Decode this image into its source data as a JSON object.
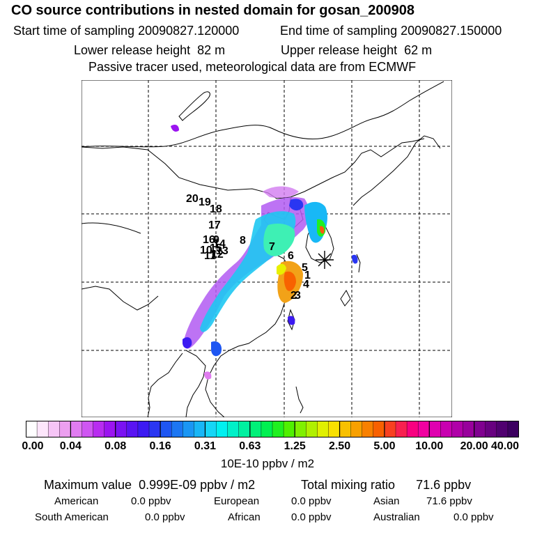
{
  "header": {
    "title": "CO  source contributions in nested domain for gosan_200908",
    "start_label": "Start time of sampling",
    "start_value": "20090827.120000",
    "end_label": "End time of sampling",
    "end_value": "20090827.150000",
    "lower_label": "Lower release height",
    "lower_value": "82 m",
    "upper_label": "Upper release height",
    "upper_value": "62 m",
    "note": "Passive tracer used, meteorological data are from ECMWF"
  },
  "map": {
    "trajectory_labels": [
      "20",
      "19",
      "18",
      "17",
      "16",
      "10",
      "11",
      "12",
      "13",
      "14",
      "15",
      "9",
      "8",
      "7",
      "6",
      "5",
      "1",
      "4",
      "2",
      "3"
    ],
    "station_marker": "receptor-star"
  },
  "colorbar": {
    "ticks": [
      "0.00",
      "0.04",
      "0.08",
      "0.16",
      "0.31",
      "0.63",
      "1.25",
      "2.50",
      "5.00",
      "10.00",
      "20.00",
      "40.00"
    ],
    "colors": [
      "#ffffff",
      "#fde6fb",
      "#f6c5f6",
      "#ec9ff0",
      "#e07cf0",
      "#cf56f2",
      "#b82cf0",
      "#9b14f0",
      "#7a12f2",
      "#5914f2",
      "#3c1af2",
      "#2a36f2",
      "#1e56f2",
      "#1c76f2",
      "#1a96f4",
      "#18b6f6",
      "#16d6f6",
      "#00f0f0",
      "#00f0c8",
      "#00f0a0",
      "#00f078",
      "#00f050",
      "#20f020",
      "#50f000",
      "#80f000",
      "#b0f000",
      "#e0f000",
      "#f8e000",
      "#f8c000",
      "#f8a000",
      "#f88000",
      "#f86000",
      "#f84020",
      "#f82050",
      "#f80080",
      "#f000a0",
      "#e000b0",
      "#c800b0",
      "#b000a8",
      "#98009c",
      "#800090",
      "#680080",
      "#500070",
      "#3c0060"
    ],
    "unit": "10E-10 ppbv / m2"
  },
  "summary": {
    "max_label": "Maximum value",
    "max_value": "0.999E-09 ppbv / m2",
    "total_label": "Total mixing ratio",
    "total_value": "71.6 ppbv"
  },
  "contributions": [
    {
      "region": "American",
      "value": "0.0 ppbv"
    },
    {
      "region": "European",
      "value": "0.0 ppbv"
    },
    {
      "region": "Asian",
      "value": "71.6 ppbv"
    },
    {
      "region": "South American",
      "value": "0.0 ppbv"
    },
    {
      "region": "African",
      "value": "0.0 ppbv"
    },
    {
      "region": "Australian",
      "value": "0.0 ppbv"
    }
  ]
}
